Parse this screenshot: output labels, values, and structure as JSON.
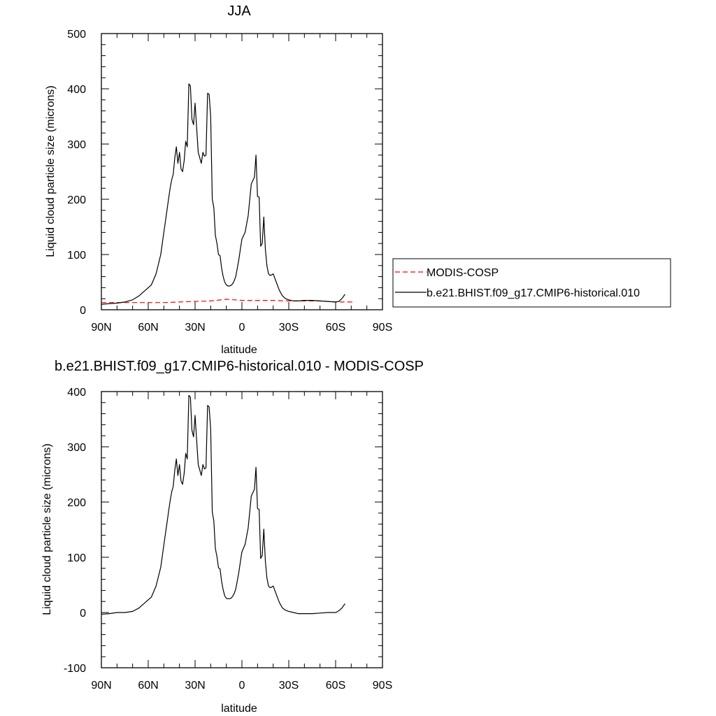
{
  "chart_data": [
    {
      "type": "line",
      "title": "JJA",
      "xlabel": "latitude",
      "ylabel": "Liquid cloud particle size (microns)",
      "xlim": [
        90,
        -90
      ],
      "ylim": [
        0,
        500
      ],
      "x_ticks": [
        {
          "value": 90,
          "label": "90N"
        },
        {
          "value": 60,
          "label": "60N"
        },
        {
          "value": 30,
          "label": "30N"
        },
        {
          "value": 0,
          "label": "0"
        },
        {
          "value": -30,
          "label": "30S"
        },
        {
          "value": -60,
          "label": "60S"
        },
        {
          "value": -90,
          "label": "90S"
        }
      ],
      "y_ticks": [
        0,
        100,
        200,
        300,
        400,
        500
      ],
      "legend_position": "right",
      "series": [
        {
          "name": "MODIS-COSP",
          "color": "#ff0000",
          "dash": "dashed",
          "x": [
            90,
            80,
            70,
            60,
            50,
            40,
            30,
            20,
            10,
            0,
            -10,
            -20,
            -30,
            -40,
            -50,
            -60,
            -65,
            -72
          ],
          "y": [
            13,
            13,
            13,
            13,
            13,
            14,
            15,
            16,
            19,
            17,
            17,
            17,
            16,
            16,
            16,
            14,
            14,
            14
          ]
        },
        {
          "name": "b.e21.BHIST.f09_g17.CMIP6-historical.010",
          "color": "#000000",
          "dash": "solid",
          "x": [
            90,
            85,
            80,
            75,
            70,
            66,
            62,
            58,
            55,
            52,
            50,
            48,
            47,
            46,
            45,
            44,
            43,
            42,
            41,
            40,
            39,
            38,
            37,
            36,
            35,
            34,
            33,
            32,
            31,
            30,
            29,
            28,
            27,
            26,
            25,
            24,
            23,
            22,
            21,
            20,
            19,
            18,
            17,
            16,
            15,
            14,
            13,
            12,
            11,
            10,
            9,
            8,
            7,
            6,
            5,
            4,
            3,
            2,
            1,
            0,
            -2,
            -4,
            -6,
            -8,
            -9,
            -10,
            -11,
            -12,
            -13,
            -14,
            -15,
            -16,
            -17,
            -18,
            -19,
            -20,
            -22,
            -24,
            -26,
            -28,
            -30,
            -33,
            -36,
            -40,
            -45,
            -50,
            -55,
            -60,
            -62,
            -64,
            -66
          ],
          "y": [
            10,
            11,
            12,
            14,
            18,
            25,
            35,
            45,
            65,
            100,
            140,
            180,
            200,
            220,
            235,
            245,
            275,
            295,
            265,
            285,
            255,
            250,
            270,
            305,
            295,
            409,
            405,
            345,
            335,
            374,
            330,
            285,
            275,
            265,
            285,
            278,
            280,
            392,
            390,
            350,
            200,
            185,
            135,
            120,
            100,
            98,
            75,
            60,
            50,
            45,
            43,
            43,
            44,
            47,
            52,
            60,
            75,
            90,
            110,
            128,
            140,
            170,
            228,
            240,
            280,
            205,
            204,
            115,
            120,
            168,
            110,
            80,
            65,
            62,
            63,
            65,
            50,
            35,
            25,
            20,
            18,
            16,
            16,
            17,
            17,
            16,
            15,
            14,
            15,
            20,
            28
          ]
        }
      ]
    },
    {
      "type": "line",
      "title": "b.e21.BHIST.f09_g17.CMIP6-historical.010 - MODIS-COSP",
      "xlabel": "latitude",
      "ylabel": "Liquid cloud particle size (microns)",
      "xlim": [
        90,
        -90
      ],
      "ylim": [
        -100,
        400
      ],
      "x_ticks": [
        {
          "value": 90,
          "label": "90N"
        },
        {
          "value": 60,
          "label": "60N"
        },
        {
          "value": 30,
          "label": "30N"
        },
        {
          "value": 0,
          "label": "0"
        },
        {
          "value": -30,
          "label": "30S"
        },
        {
          "value": -60,
          "label": "60S"
        },
        {
          "value": -90,
          "label": "90S"
        }
      ],
      "y_ticks": [
        -100,
        0,
        100,
        200,
        300,
        400
      ],
      "series": [
        {
          "color": "#000000",
          "dash": "solid",
          "x": [
            90,
            85,
            80,
            75,
            70,
            66,
            62,
            58,
            55,
            52,
            50,
            48,
            47,
            46,
            45,
            44,
            43,
            42,
            41,
            40,
            39,
            38,
            37,
            36,
            35,
            34,
            33,
            32,
            31,
            30,
            29,
            28,
            27,
            26,
            25,
            24,
            23,
            22,
            21,
            20,
            19,
            18,
            17,
            16,
            15,
            14,
            13,
            12,
            11,
            10,
            9,
            8,
            7,
            6,
            5,
            4,
            3,
            2,
            1,
            0,
            -2,
            -4,
            -6,
            -8,
            -9,
            -10,
            -11,
            -12,
            -13,
            -14,
            -15,
            -16,
            -17,
            -18,
            -19,
            -20,
            -22,
            -24,
            -26,
            -28,
            -30,
            -33,
            -36,
            -40,
            -45,
            -50,
            -55,
            -60,
            -62,
            -64,
            -66
          ],
          "y": [
            -3,
            -2,
            0,
            0,
            2,
            8,
            18,
            28,
            48,
            82,
            122,
            162,
            182,
            202,
            218,
            228,
            258,
            278,
            248,
            268,
            238,
            232,
            252,
            288,
            278,
            393,
            390,
            330,
            318,
            357,
            313,
            268,
            258,
            248,
            268,
            260,
            262,
            375,
            372,
            332,
            182,
            166,
            116,
            101,
            81,
            79,
            56,
            41,
            30,
            26,
            25,
            25,
            26,
            29,
            34,
            42,
            57,
            72,
            92,
            110,
            123,
            153,
            211,
            223,
            263,
            188,
            187,
            98,
            103,
            151,
            93,
            63,
            48,
            45,
            46,
            48,
            33,
            18,
            8,
            4,
            2,
            0,
            -2,
            -2,
            -2,
            -1,
            0,
            0,
            3,
            8,
            16
          ]
        }
      ]
    }
  ]
}
